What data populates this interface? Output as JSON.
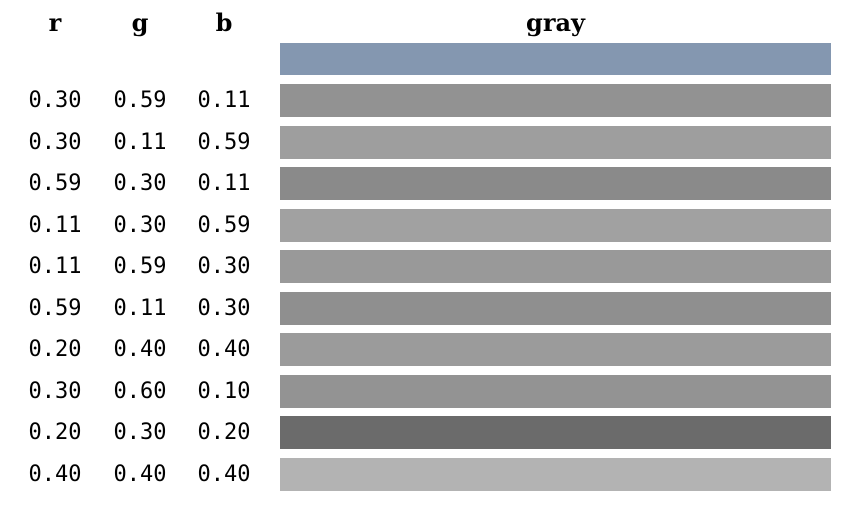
{
  "chart_data": {
    "type": "table",
    "columns": [
      "r",
      "g",
      "b",
      "gray"
    ],
    "reference_color": "#8497b0",
    "rows": [
      {
        "r": "0.30",
        "g": "0.59",
        "b": "0.11",
        "gray_color": "#929292"
      },
      {
        "r": "0.30",
        "g": "0.11",
        "b": "0.59",
        "gray_color": "#9e9e9e"
      },
      {
        "r": "0.59",
        "g": "0.30",
        "b": "0.11",
        "gray_color": "#8a8a8a"
      },
      {
        "r": "0.11",
        "g": "0.30",
        "b": "0.59",
        "gray_color": "#a1a1a1"
      },
      {
        "r": "0.11",
        "g": "0.59",
        "b": "0.30",
        "gray_color": "#999999"
      },
      {
        "r": "0.59",
        "g": "0.11",
        "b": "0.30",
        "gray_color": "#8f8f8f"
      },
      {
        "r": "0.20",
        "g": "0.40",
        "b": "0.40",
        "gray_color": "#9b9b9b"
      },
      {
        "r": "0.30",
        "g": "0.60",
        "b": "0.10",
        "gray_color": "#939393"
      },
      {
        "r": "0.20",
        "g": "0.30",
        "b": "0.20",
        "gray_color": "#6b6b6b"
      },
      {
        "r": "0.40",
        "g": "0.40",
        "b": "0.40",
        "gray_color": "#b3b3b3"
      }
    ]
  }
}
